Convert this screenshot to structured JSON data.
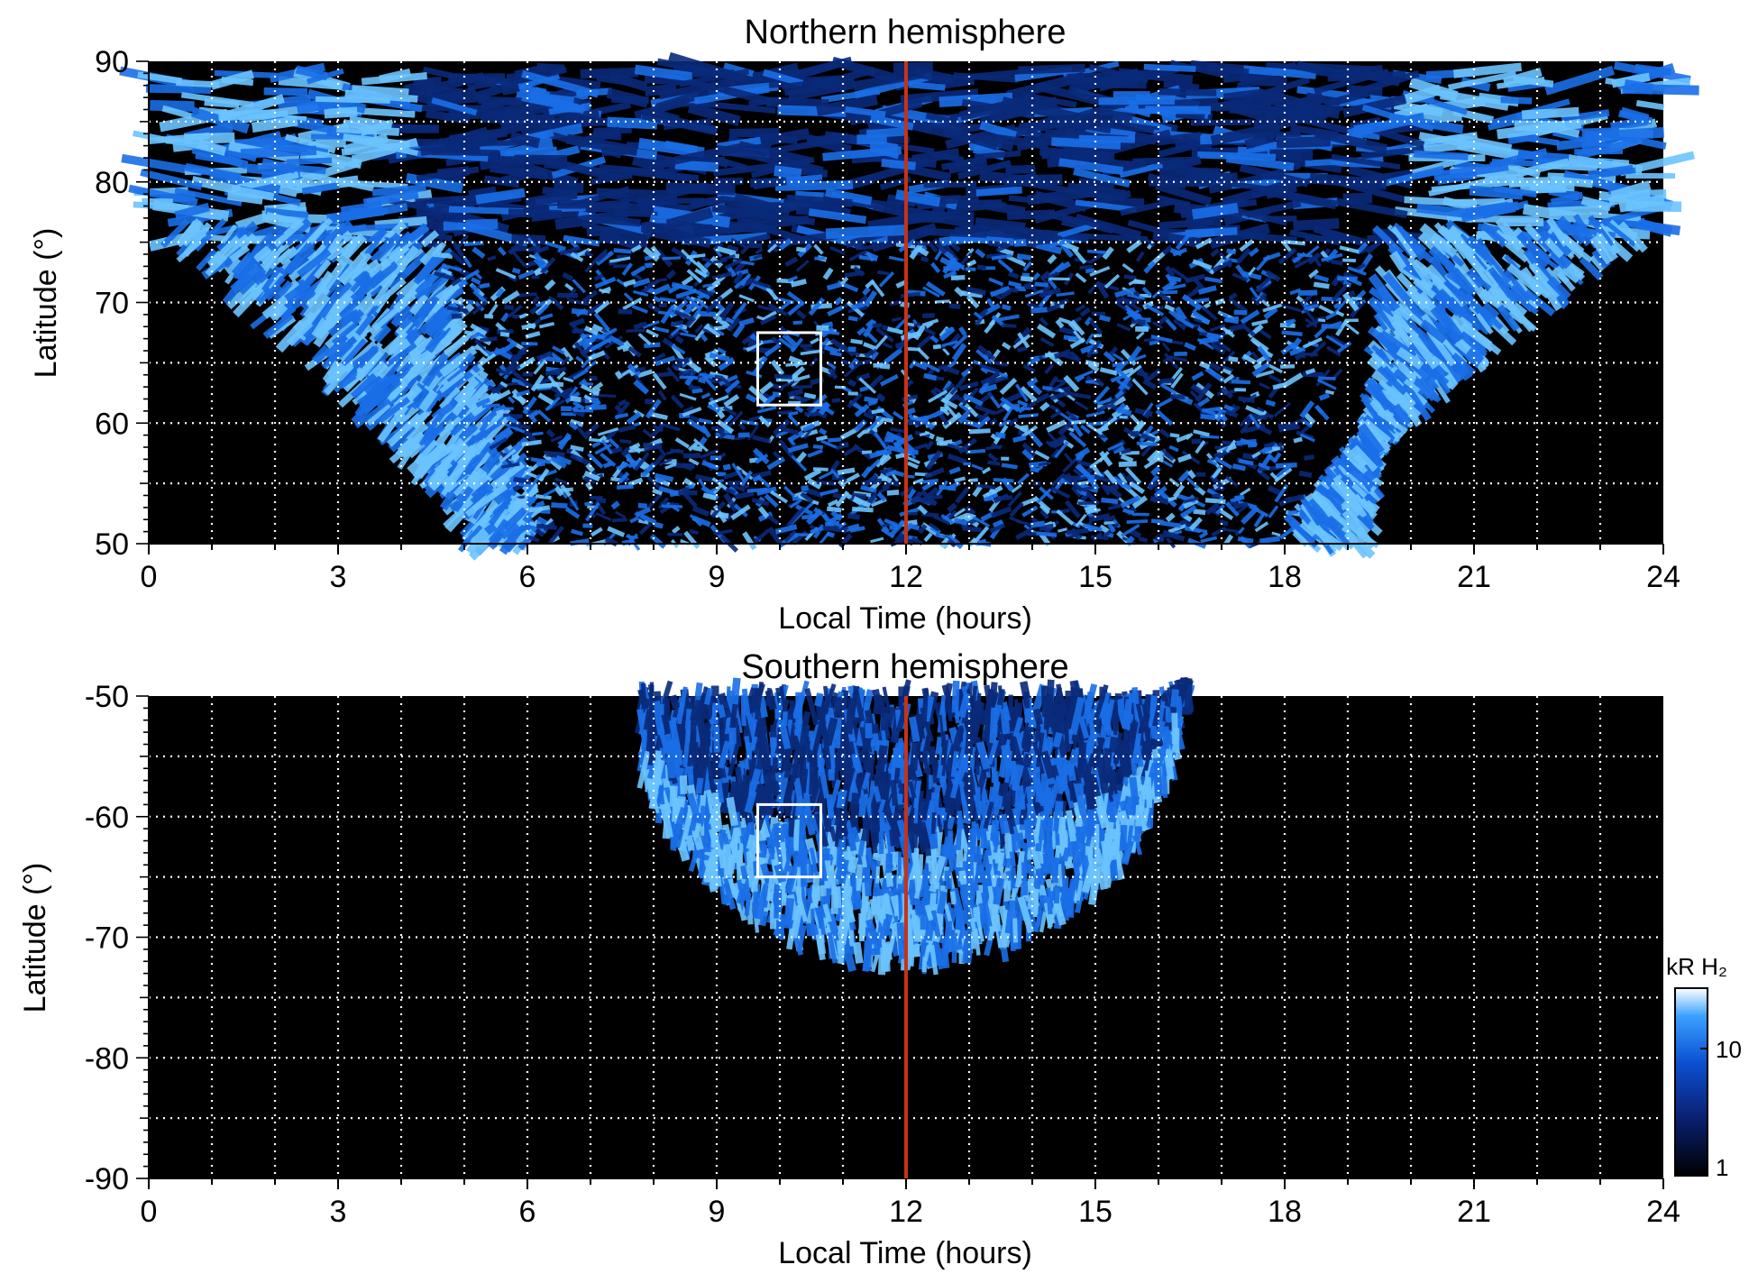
{
  "chart_data": [
    {
      "type": "heatmap",
      "title": "Northern hemisphere",
      "xlabel": "Local Time (hours)",
      "ylabel": "Latitude (°)",
      "xlim": [
        0,
        24
      ],
      "ylim": [
        50,
        90
      ],
      "xticks": [
        "0",
        "3",
        "6",
        "9",
        "12",
        "15",
        "18",
        "21",
        "24"
      ],
      "yticks": [
        "50",
        "60",
        "70",
        "80",
        "90"
      ],
      "grid": true,
      "marker_line_x": 12,
      "marker_line_color": "#c83214",
      "highlight_box": {
        "x": [
          9.65,
          10.65
        ],
        "y": [
          61.5,
          67.5
        ]
      },
      "emission_regions": [
        {
          "description_kind": "polar cap",
          "lat_min": 75,
          "lat_max": 90
        },
        {
          "description_kind": "auroral band morning",
          "lt_start_at_50": 5.1,
          "lt_end_at_50": 6.1
        },
        {
          "description_kind": "auroral band evening",
          "lt_start_at_50": 18.1,
          "lt_end_at_50": 19.3
        }
      ]
    },
    {
      "type": "heatmap",
      "title": "Southern hemisphere",
      "xlabel": "Local Time (hours)",
      "ylabel": "Latitude (°)",
      "xlim": [
        0,
        24
      ],
      "ylim": [
        -90,
        -50
      ],
      "xticks": [
        "0",
        "3",
        "6",
        "9",
        "12",
        "15",
        "18",
        "21",
        "24"
      ],
      "yticks": [
        "-50",
        "-60",
        "-70",
        "-80",
        "-90"
      ],
      "grid": true,
      "marker_line_x": 12,
      "marker_line_color": "#c83214",
      "highlight_box": {
        "x": [
          9.65,
          10.65
        ],
        "y": [
          -65,
          -59
        ]
      },
      "emission_regions": [
        {
          "description_kind": "auroral oval",
          "lt_min": 7.8,
          "lt_max": 16.5,
          "lat_min": -72,
          "lat_max": -50
        }
      ]
    }
  ],
  "colorbar": {
    "label": "kR H₂",
    "ticks": [
      "10",
      "1"
    ],
    "scale": "log",
    "range": [
      1,
      20
    ],
    "colors": [
      "#000000",
      "#0a1f6e",
      "#0b4fd1",
      "#3aa0ff",
      "#ffffff"
    ]
  },
  "colors": {
    "background": "#000000",
    "grid": "#ffffff",
    "emission_low": "#0b3f9e",
    "emission_mid": "#1a6fe8",
    "emission_high": "#6cc4ff"
  }
}
